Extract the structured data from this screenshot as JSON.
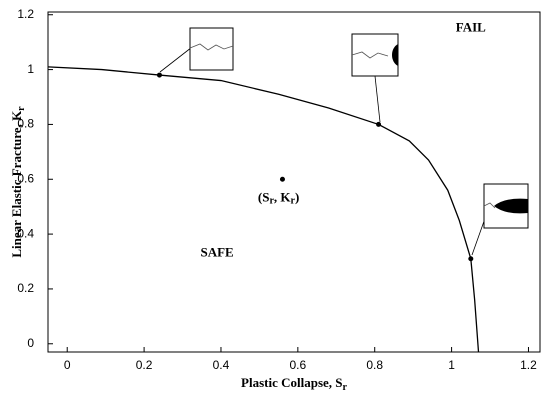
{
  "chart_data": {
    "type": "line",
    "y_label": {
      "text": "Linear Elastic Fracture,  K",
      "sub": "r"
    },
    "x_label": {
      "text": "Plastic Collapse,  S",
      "sub": "r"
    },
    "x": [
      -0.05,
      0.09,
      0.24,
      0.4,
      0.55,
      0.68,
      0.81,
      0.89,
      0.94,
      0.99,
      1.02,
      1.05,
      1.06,
      1.07
    ],
    "series": [
      {
        "color": "#000000",
        "values": [
          1.01,
          1.0,
          0.98,
          0.96,
          0.91,
          0.86,
          0.8,
          0.74,
          0.67,
          0.56,
          0.45,
          0.31,
          0.16,
          -0.03
        ]
      }
    ],
    "points": {
      "x": [
        0.24,
        0.81,
        1.05,
        0.56
      ],
      "y": [
        0.98,
        0.8,
        0.31,
        0.6
      ]
    },
    "annotations": [
      {
        "text": "FAIL",
        "x": 1.05,
        "y": 1.15
      },
      {
        "text": "SAFE",
        "x": 0.39,
        "y": 0.33
      },
      {
        "parts": [
          "(S",
          "r",
          ", K",
          "r",
          ")"
        ],
        "x": 0.55,
        "y": 0.53
      }
    ],
    "xlim": [
      -0.05,
      1.23
    ],
    "ylim": [
      -0.03,
      1.21
    ],
    "xticks": [
      0,
      0.2,
      0.4,
      0.6,
      0.8,
      1,
      1.2
    ],
    "yticks": [
      0,
      0.2,
      0.4,
      0.6,
      0.8,
      1,
      1.2
    ],
    "grid": false
  }
}
